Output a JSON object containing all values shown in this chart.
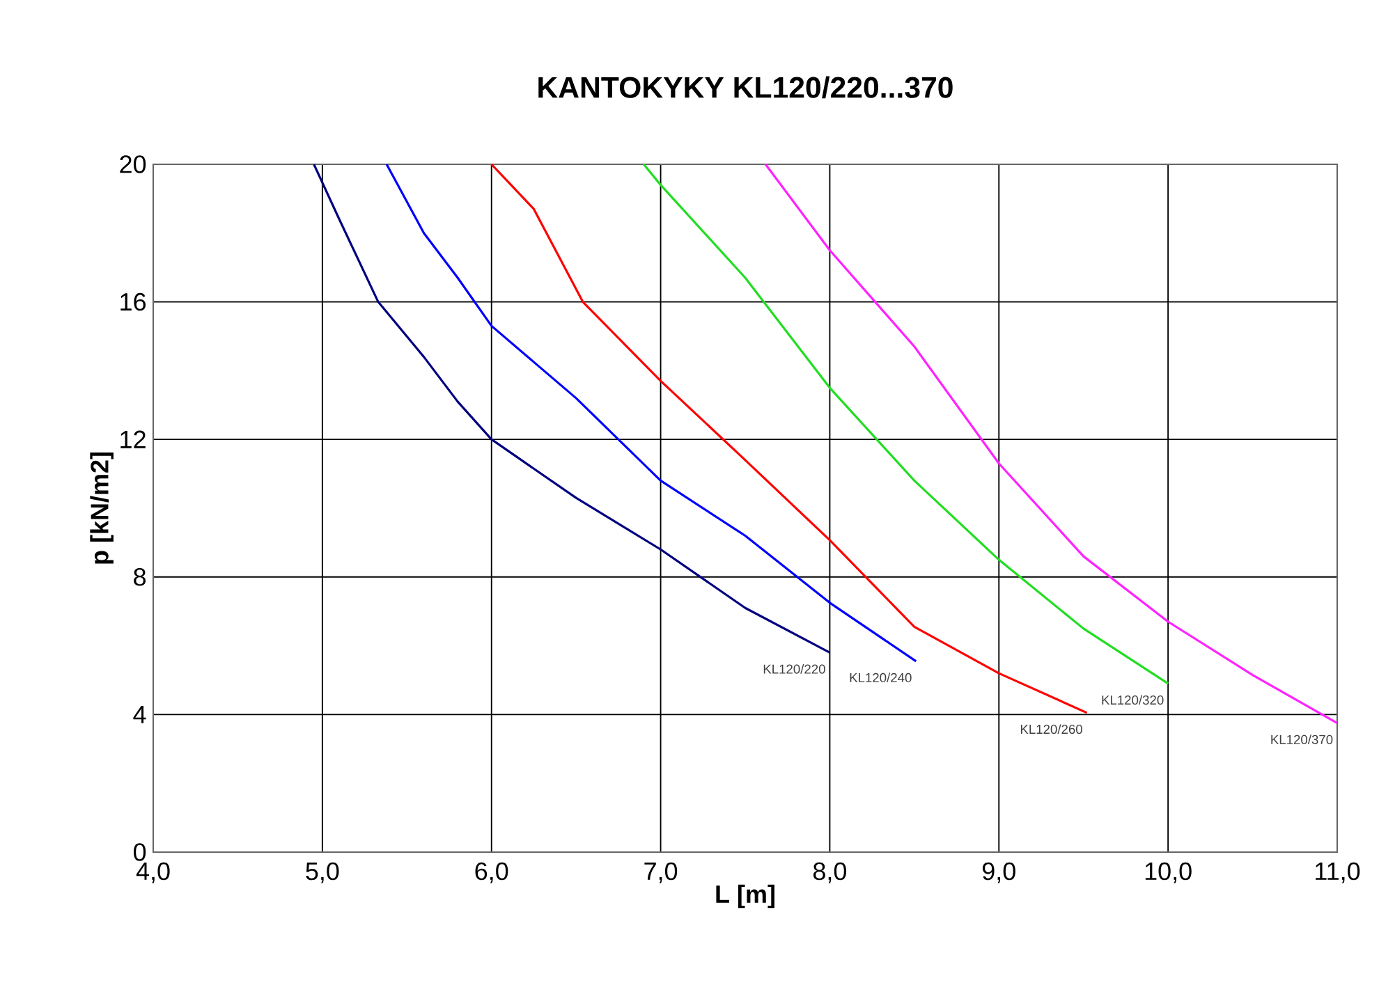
{
  "chart_data": {
    "type": "line",
    "title": "KANTOKYKY KL120/220...370",
    "xlabel": "L [m]",
    "ylabel": "p [kN/m2]",
    "xlim": [
      4,
      11
    ],
    "ylim": [
      0,
      20
    ],
    "xticks": [
      {
        "value": 4,
        "label": "4,0"
      },
      {
        "value": 5,
        "label": "5,0"
      },
      {
        "value": 6,
        "label": "6,0"
      },
      {
        "value": 7,
        "label": "7,0"
      },
      {
        "value": 8,
        "label": "8,0"
      },
      {
        "value": 9,
        "label": "9,0"
      },
      {
        "value": 10,
        "label": "10,0"
      },
      {
        "value": 11,
        "label": "11,0"
      }
    ],
    "yticks": [
      0,
      4,
      8,
      12,
      16,
      20
    ],
    "grid": true,
    "legend": false,
    "marker": "none",
    "line_style": "solid",
    "series": [
      {
        "name": "KL120/220",
        "color": "#000080",
        "x": [
          4.95,
          5.1,
          5.33,
          5.6,
          5.8,
          6.0,
          6.5,
          7.0,
          7.5,
          8.0
        ],
        "values": [
          20,
          18.4,
          16,
          14.4,
          13.1,
          12.0,
          10.3,
          8.8,
          7.1,
          5.8
        ]
      },
      {
        "name": "KL120/240",
        "color": "#0000ff",
        "x": [
          5.38,
          5.6,
          5.8,
          6.0,
          6.5,
          7.0,
          7.5,
          8.0,
          8.51
        ],
        "values": [
          20,
          18.0,
          16.7,
          15.3,
          13.2,
          10.8,
          9.2,
          7.25,
          5.55
        ]
      },
      {
        "name": "KL120/260",
        "color": "#ff0000",
        "x": [
          6.0,
          6.25,
          6.54,
          7.0,
          7.5,
          8.0,
          8.5,
          9.0,
          9.52
        ],
        "values": [
          20,
          18.7,
          16,
          13.7,
          11.4,
          9.07,
          6.55,
          5.2,
          4.05
        ]
      },
      {
        "name": "KL120/320",
        "color": "#22dd22",
        "x": [
          6.9,
          7.0,
          7.5,
          8.0,
          8.5,
          9.0,
          9.5,
          10.0
        ],
        "values": [
          20,
          19.4,
          16.7,
          13.5,
          10.8,
          8.5,
          6.5,
          4.9
        ]
      },
      {
        "name": "KL120/370",
        "color": "#ff22ff",
        "x": [
          7.62,
          8.0,
          8.5,
          9.0,
          9.5,
          10.0,
          10.5,
          11.0
        ],
        "values": [
          20,
          17.5,
          14.7,
          11.3,
          8.6,
          6.7,
          5.15,
          3.75
        ]
      }
    ]
  }
}
